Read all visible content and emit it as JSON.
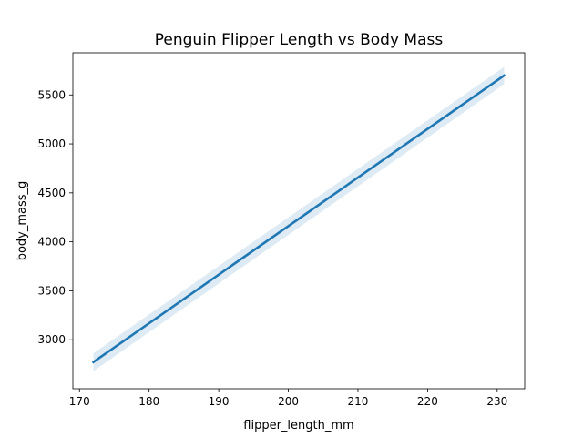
{
  "chart_data": {
    "type": "line",
    "title": "Penguin Flipper Length vs Body Mass",
    "xlabel": "flipper_length_mm",
    "ylabel": "body_mass_g",
    "xlim": [
      169.05,
      233.95
    ],
    "ylim": [
      2500,
      5930
    ],
    "xticks": [
      170,
      180,
      190,
      200,
      210,
      220,
      230
    ],
    "yticks": [
      3000,
      3500,
      4000,
      4500,
      5000,
      5500
    ],
    "grid": false,
    "series": [
      {
        "x": [
          172,
          231
        ],
        "y": [
          2772,
          5698
        ],
        "ci_lower": [
          2680,
          5610
        ],
        "ci_upper": [
          2862,
          5786
        ],
        "color": "#1f77b4",
        "band_color": "#1f77b4"
      }
    ]
  }
}
